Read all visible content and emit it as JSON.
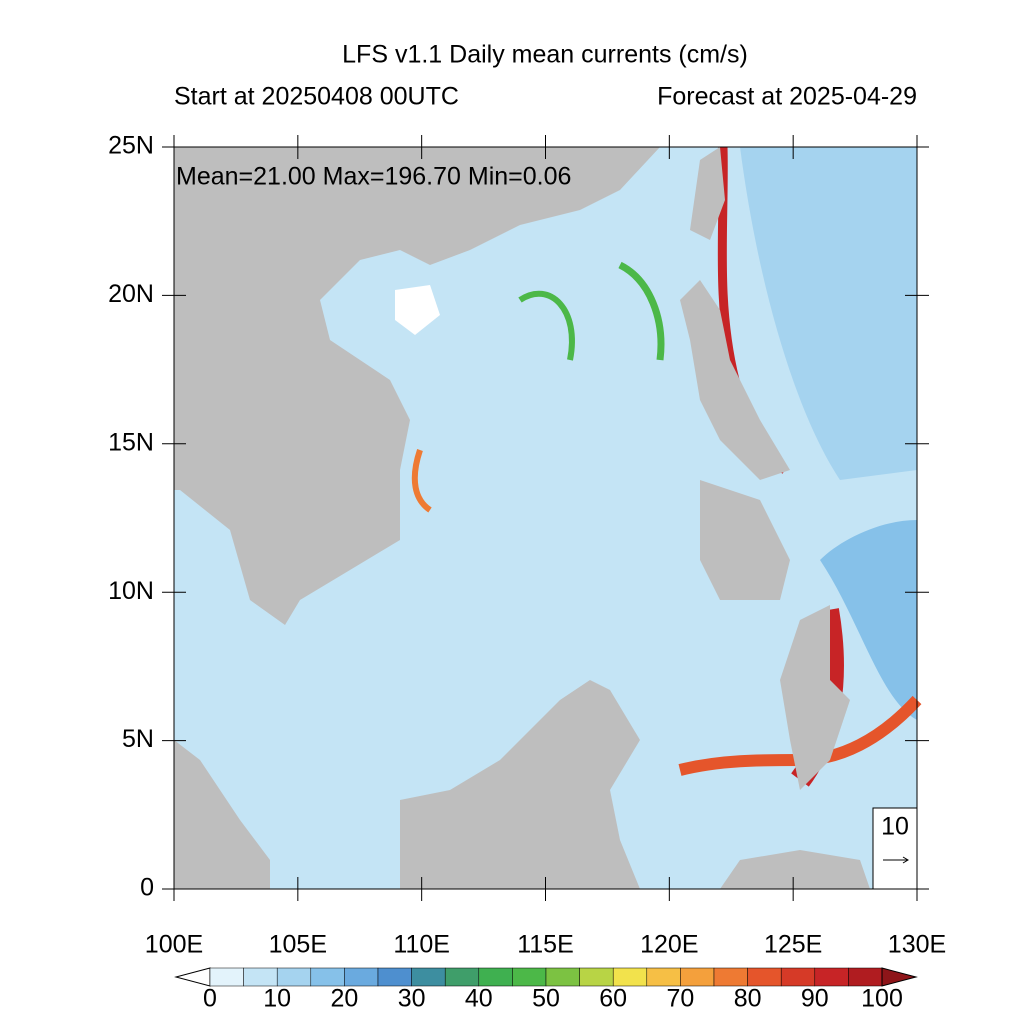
{
  "chart_data": {
    "type": "vector-map",
    "title": "LFS v1.1 Daily mean currents (cm/s)",
    "subtitle_left": "Start at 20250408 00UTC",
    "subtitle_right": "Forecast at 2025-04-29",
    "stats": "Mean=21.00  Max=196.70  Min=0.06",
    "xlim": [
      100,
      130
    ],
    "ylim": [
      0,
      25
    ],
    "xticks": [
      {
        "value": 100,
        "label": "100E"
      },
      {
        "value": 105,
        "label": "105E"
      },
      {
        "value": 110,
        "label": "110E"
      },
      {
        "value": 115,
        "label": "115E"
      },
      {
        "value": 120,
        "label": "120E"
      },
      {
        "value": 125,
        "label": "125E"
      },
      {
        "value": 130,
        "label": "130E"
      }
    ],
    "yticks": [
      0,
      {
        "value": 5,
        "label": "5N"
      },
      {
        "value": 10,
        "label": "10N"
      },
      {
        "value": 15,
        "label": "15N"
      },
      {
        "value": 20,
        "label": "20N"
      },
      {
        "value": 25,
        "label": "25N"
      }
    ],
    "levels": [
      0,
      5,
      10,
      15,
      20,
      25,
      30,
      35,
      40,
      45,
      50,
      55,
      60,
      65,
      70,
      75,
      80,
      85,
      90,
      95,
      100
    ],
    "colorbar_ticks": [
      0,
      10,
      20,
      30,
      40,
      50,
      60,
      70,
      80,
      90,
      100
    ],
    "colors": [
      "#ffffff",
      "#e3f3fb",
      "#c4e4f5",
      "#a5d3ef",
      "#86c1e9",
      "#6aaadf",
      "#4e8fcf",
      "#3d8ea0",
      "#3f9e6a",
      "#3fb050",
      "#4cb848",
      "#7cc242",
      "#b8d445",
      "#f2e24c",
      "#f6bf45",
      "#f4a03c",
      "#ee7a33",
      "#e5552b",
      "#d63a27",
      "#c72426",
      "#b01c20",
      "#8e1519"
    ],
    "ref_vector": 10
  }
}
